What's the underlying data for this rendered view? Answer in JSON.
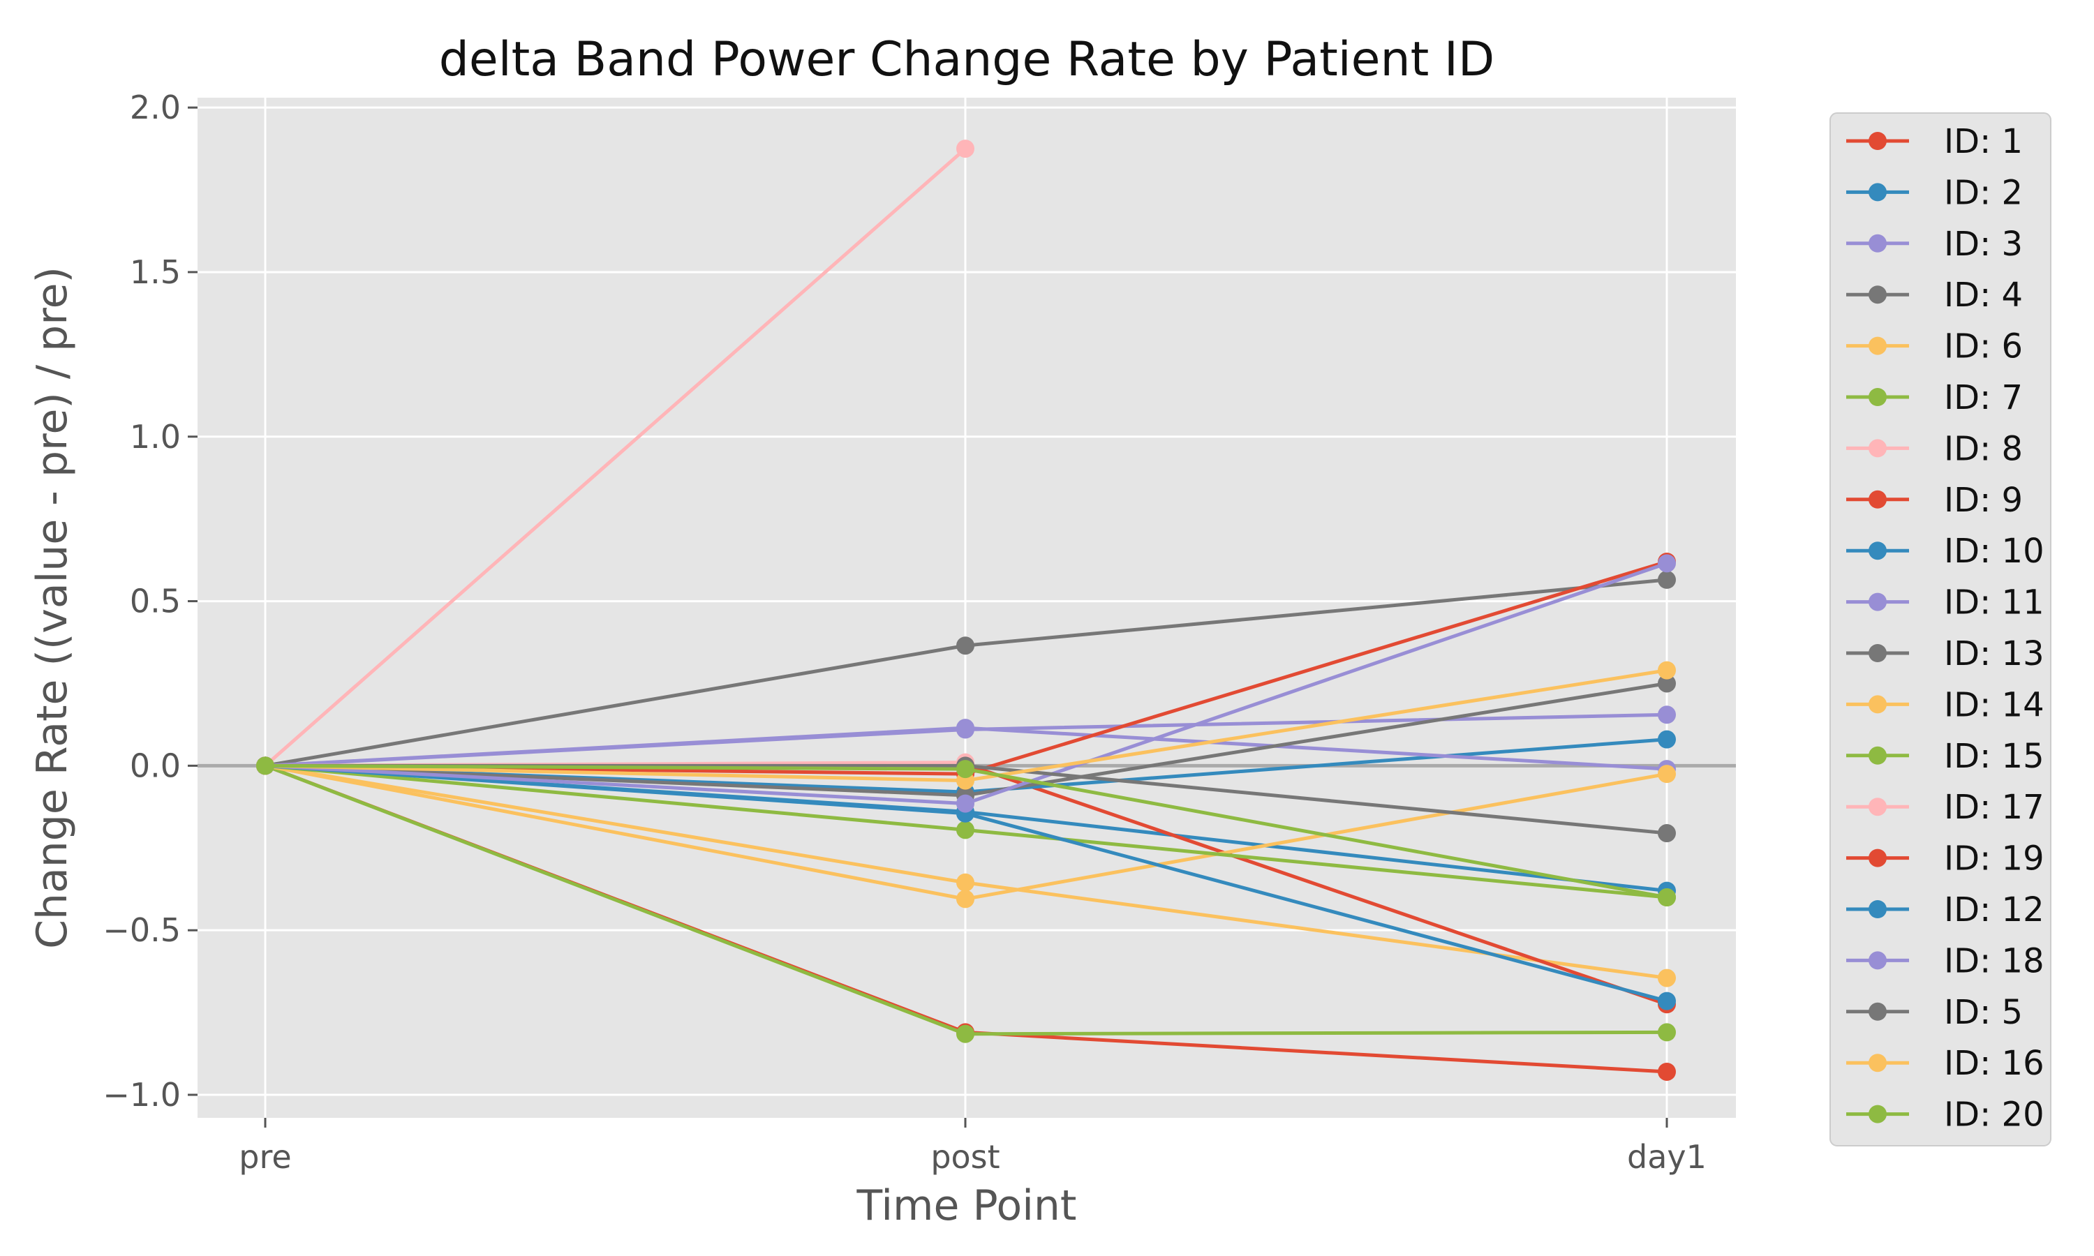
{
  "chart_data": {
    "type": "line",
    "title": "delta Band Power Change Rate by Patient ID",
    "xlabel": "Time Point",
    "ylabel": "Change Rate ((value - pre) / pre)",
    "categories": [
      "pre",
      "post",
      "day1"
    ],
    "ylim": [
      -1.07,
      2.03
    ],
    "yticks": [
      -1.0,
      -0.5,
      0.0,
      0.5,
      1.0,
      1.5,
      2.0
    ],
    "ytick_labels": [
      "−1.0",
      "−0.5",
      "0.0",
      "0.5",
      "1.0",
      "1.5",
      "2.0"
    ],
    "grid": true,
    "zero_line": true,
    "legend_position": "outside-right",
    "background": "#e5e5e5",
    "series": [
      {
        "name": "ID: 1",
        "color": "#e24a33",
        "values": [
          0,
          -0.81,
          -0.93
        ]
      },
      {
        "name": "ID: 2",
        "color": "#348abd",
        "values": [
          0,
          -0.14,
          -0.38
        ]
      },
      {
        "name": "ID: 3",
        "color": "#988ed5",
        "values": [
          0,
          0.11,
          0.155
        ]
      },
      {
        "name": "ID: 4",
        "color": "#777777",
        "values": [
          0,
          0.365,
          0.565
        ]
      },
      {
        "name": "ID: 6",
        "color": "#fbc15e",
        "values": [
          0,
          -0.355,
          -0.645
        ]
      },
      {
        "name": "ID: 7",
        "color": "#8eba42",
        "values": [
          0,
          -0.815,
          -0.81
        ]
      },
      {
        "name": "ID: 8",
        "color": "#ffb5b8",
        "values": [
          0,
          1.875,
          null
        ]
      },
      {
        "name": "ID: 9",
        "color": "#e24a33",
        "values": [
          0,
          0.005,
          -0.725
        ]
      },
      {
        "name": "ID: 10",
        "color": "#348abd",
        "values": [
          0,
          -0.08,
          0.08
        ]
      },
      {
        "name": "ID: 11",
        "color": "#988ed5",
        "values": [
          0,
          0.115,
          -0.01
        ]
      },
      {
        "name": "ID: 13",
        "color": "#777777",
        "values": [
          0,
          -0.09,
          0.25
        ]
      },
      {
        "name": "ID: 14",
        "color": "#fbc15e",
        "values": [
          0,
          -0.405,
          -0.025
        ]
      },
      {
        "name": "ID: 15",
        "color": "#8eba42",
        "values": [
          0,
          -0.195,
          -0.4
        ]
      },
      {
        "name": "ID: 17",
        "color": "#ffb5b8",
        "values": [
          0,
          0.01,
          null
        ]
      },
      {
        "name": "ID: 19",
        "color": "#e24a33",
        "values": [
          0,
          -0.025,
          0.62
        ]
      },
      {
        "name": "ID: 12",
        "color": "#348abd",
        "values": [
          0,
          -0.145,
          -0.715
        ]
      },
      {
        "name": "ID: 18",
        "color": "#988ed5",
        "values": [
          0,
          -0.115,
          0.615
        ]
      },
      {
        "name": "ID: 5",
        "color": "#777777",
        "values": [
          0,
          0.0,
          -0.205
        ]
      },
      {
        "name": "ID: 16",
        "color": "#fbc15e",
        "values": [
          0,
          -0.045,
          0.29
        ]
      },
      {
        "name": "ID: 20",
        "color": "#8eba42",
        "values": [
          0,
          -0.01,
          -0.4
        ]
      }
    ]
  }
}
